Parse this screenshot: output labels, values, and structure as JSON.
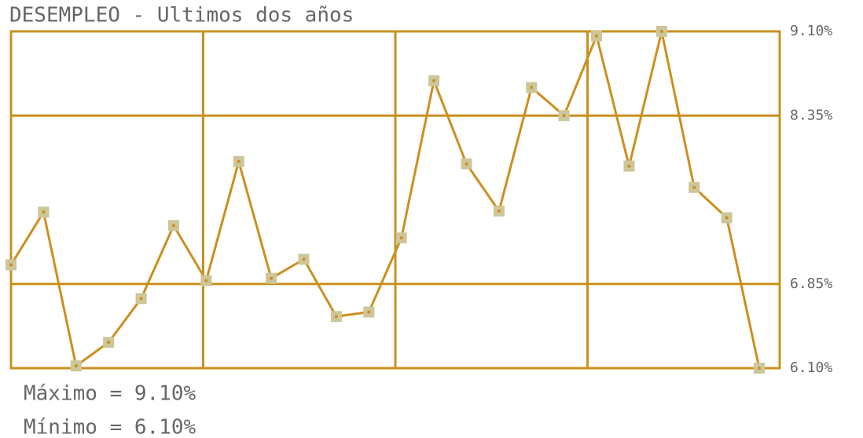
{
  "chart_data": {
    "type": "line",
    "title": "DESEMPLEO - Ultimos dos años",
    "categories": [
      null,
      null,
      null,
      null,
      null,
      null,
      null,
      null,
      null,
      null,
      null,
      null,
      null,
      null,
      null,
      null,
      null,
      null,
      null,
      null,
      null,
      null,
      null,
      null
    ],
    "series": [
      {
        "color": "#cc8f1f",
        "marker_color": "#cdc699",
        "values": [
          7.02,
          7.49,
          6.12,
          6.33,
          6.72,
          7.37,
          6.88,
          7.94,
          6.9,
          7.07,
          6.56,
          6.6,
          7.26,
          8.66,
          7.92,
          7.5,
          8.6,
          8.35,
          9.06,
          7.9,
          9.1,
          7.71,
          7.44,
          6.1
        ]
      }
    ],
    "ylim": [
      6.1,
      9.1
    ],
    "yticks": [
      {
        "value": 6.1,
        "label": "6.10%"
      },
      {
        "value": 6.85,
        "label": "6.85%"
      },
      {
        "value": 8.35,
        "label": "8.35%"
      },
      {
        "value": 9.1,
        "label": "9.10%"
      }
    ],
    "grid": true,
    "grid_color": "#c8901e",
    "annotations": [
      "Máximo = 9.10%",
      "Mínimo = 6.10%"
    ]
  }
}
